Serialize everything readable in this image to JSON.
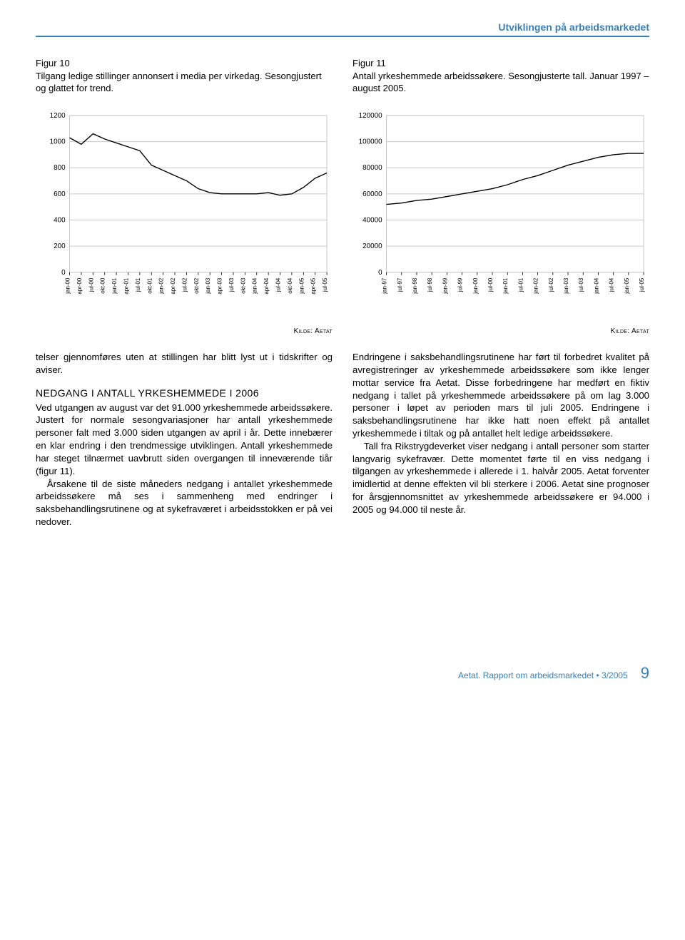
{
  "header": {
    "section_title": "Utviklingen på arbeidsmarkedet"
  },
  "figure10": {
    "num": "Figur 10",
    "caption": "Tilgang ledige stillinger annonsert i media per virkedag. Sesongjustert og glattet for trend.",
    "chart": {
      "type": "line",
      "ylim": [
        0,
        1200
      ],
      "ytick_step": 200,
      "yticks": [
        0,
        200,
        400,
        600,
        800,
        1000,
        1200
      ],
      "categories": [
        "jan-00",
        "apr-00",
        "jul-00",
        "okt-00",
        "jan-01",
        "apr-01",
        "jul-01",
        "okt-01",
        "jan-02",
        "apr-02",
        "jul-02",
        "okt-02",
        "jan-03",
        "apr-03",
        "jul-03",
        "okt-03",
        "jan-04",
        "apr-04",
        "jul-04",
        "okt-04",
        "jan-05",
        "apr-05",
        "jul-05"
      ],
      "values": [
        1030,
        980,
        1060,
        1020,
        990,
        960,
        930,
        820,
        780,
        740,
        700,
        640,
        610,
        600,
        600,
        600,
        600,
        610,
        590,
        600,
        650,
        720,
        760
      ],
      "line_color": "#000000",
      "line_width": 1.4,
      "grid_color": "#c9c9c9",
      "axis_color": "#000000",
      "background_color": "#ffffff",
      "tick_fontsize": 8
    },
    "source": "Kilde: Aetat"
  },
  "figure11": {
    "num": "Figur 11",
    "caption": "Antall yrkeshemmede arbeidssøkere. Sesongjusterte tall. Januar 1997 – august 2005.",
    "chart": {
      "type": "line",
      "ylim": [
        0,
        120000
      ],
      "ytick_step": 20000,
      "yticks": [
        0,
        20000,
        40000,
        60000,
        80000,
        100000,
        120000
      ],
      "categories": [
        "jan-97",
        "jul-97",
        "jan-98",
        "jul-98",
        "jan-99",
        "jul-99",
        "jan-00",
        "jul-00",
        "jan-01",
        "jul-01",
        "jan-02",
        "jul-02",
        "jan-03",
        "jul-03",
        "jan-04",
        "jul-04",
        "jan-05",
        "jul-05"
      ],
      "values": [
        52000,
        53000,
        55000,
        56000,
        58000,
        60000,
        62000,
        64000,
        67000,
        71000,
        74000,
        78000,
        82000,
        85000,
        88000,
        90000,
        91000,
        91000
      ],
      "line_color": "#000000",
      "line_width": 1.4,
      "grid_color": "#c9c9c9",
      "axis_color": "#000000",
      "background_color": "#ffffff",
      "tick_fontsize": 8
    },
    "source": "Kilde: Aetat"
  },
  "body": {
    "p1": "telser gjennomføres uten at stillingen har blitt lyst ut i tidskrifter og aviser.",
    "h2": "NEDGANG I ANTALL YRKESHEMMEDE I 2006",
    "p2": "Ved utgangen av august var det 91.000 yrkeshemmede arbeidssøkere. Justert for normale sesongvariasjoner har antall yrkeshemmede personer falt med 3.000 siden utgangen av april i år. Dette innebærer en klar endring i den trendmessige utviklingen. Antall yrkeshemmede har steget tilnærmet uavbrutt siden overgangen til inneværende tiår (figur 11).",
    "p3": "Årsakene til de siste måneders nedgang i antallet yrkeshemmede arbeidssøkere må ses i sammenheng med endringer i saksbehandlingsrutinene og at sykefraværet i arbeidsstokken er på vei nedover.",
    "p4": "Endringene i saksbehandlingsrutinene har ført til forbedret kvalitet på avregistreringer av yrkeshemmede arbeidssøkere som ikke lenger mottar service fra Aetat. Disse forbedringene har medført en fiktiv nedgang i tallet på yrkeshemmede arbeidssøkere på om lag 3.000 personer i løpet av perioden mars til juli 2005. Endringene i saksbehandlingsrutinene har ikke hatt noen effekt på antallet yrkeshemmede i tiltak og på antallet helt ledige arbeidssøkere.",
    "p5": "Tall fra Rikstrygdeverket viser nedgang i antall personer som starter langvarig sykefravær. Dette momentet førte til en viss nedgang i tilgangen av yrkeshemmede i allerede i 1. halvår 2005. Aetat forventer imidlertid at denne effekten vil bli sterkere i 2006. Aetat sine prognoser for årsgjennomsnittet av yrkeshemmede arbeidssøkere er 94.000 i 2005 og 94.000 til neste år."
  },
  "footer": {
    "pub": "Aetat.  Rapport om arbeidsmarkedet",
    "issue": "3/2005",
    "page": "9"
  }
}
